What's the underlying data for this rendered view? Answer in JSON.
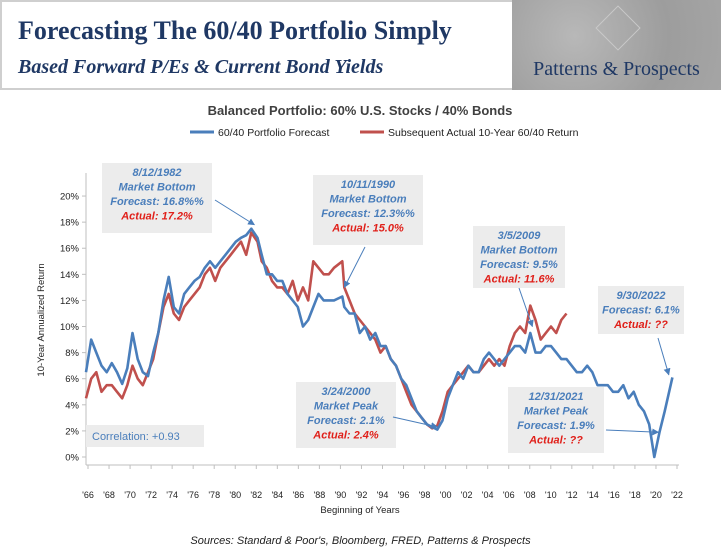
{
  "header": {
    "title": "Forecasting The 60/40 Portfolio Simply",
    "subtitle": "Based Forward P/Es & Current Bond Yields",
    "logo_text": "Patterns & Prospects"
  },
  "sources": "Sources: Standard & Poor's, Bloomberg, FRED, Patterns & Prospects",
  "chart_data": {
    "type": "line",
    "title": "Balanced Portfolio: 60% U.S. Stocks / 40% Bonds",
    "xlabel": "Beginning of Years",
    "ylabel": "10-Year Annualized Return",
    "xlim": [
      1966,
      2023
    ],
    "ylim": [
      0,
      21
    ],
    "yticks": [
      0,
      2,
      4,
      6,
      8,
      10,
      12,
      14,
      16,
      18,
      20
    ],
    "ytick_format": "percent",
    "xticks": [
      "'66",
      "'68",
      "'70",
      "'72",
      "'74",
      "'76",
      "'78",
      "'80",
      "'82",
      "'84",
      "'86",
      "'88",
      "'90",
      "'92",
      "'94",
      "'96",
      "'98",
      "'00",
      "'02",
      "'04",
      "'06",
      "'08",
      "'10",
      "'12",
      "'14",
      "'16",
      "'18",
      "'20",
      "'22"
    ],
    "legend_position": "top",
    "grid": false,
    "series": [
      {
        "name": "60/40 Portfolio Forecast",
        "color": "#4a7ebb",
        "x": [
          1966,
          1966.5,
          1967,
          1967.5,
          1968,
          1968.5,
          1969,
          1969.5,
          1970,
          1970.5,
          1971,
          1971.5,
          1972,
          1972.5,
          1973,
          1973.5,
          1974,
          1974.5,
          1975,
          1975.5,
          1976,
          1976.5,
          1977,
          1977.5,
          1978,
          1978.5,
          1979,
          1979.5,
          1980,
          1980.5,
          1981,
          1981.5,
          1982,
          1982.6,
          1983,
          1983.5,
          1984,
          1984.5,
          1985,
          1985.5,
          1986,
          1986.5,
          1987,
          1987.5,
          1988,
          1988.5,
          1989,
          1989.5,
          1990,
          1990.8,
          1991,
          1991.5,
          1992,
          1992.5,
          1993,
          1993.5,
          1994,
          1994.5,
          1995,
          1995.5,
          1996,
          1996.5,
          1997,
          1997.5,
          1998,
          1998.5,
          1999,
          1999.5,
          2000,
          2000.5,
          2001,
          2001.5,
          2002,
          2002.5,
          2003,
          2003.5,
          2004,
          2004.5,
          2005,
          2005.5,
          2006,
          2006.5,
          2007,
          2007.5,
          2008,
          2008.5,
          2009,
          2009.5,
          2010,
          2010.5,
          2011,
          2011.5,
          2012,
          2012.5,
          2013,
          2013.5,
          2014,
          2014.5,
          2015,
          2015.5,
          2016,
          2016.5,
          2017,
          2017.5,
          2018,
          2018.5,
          2019,
          2019.5,
          2020,
          2020.5,
          2021,
          2021.5,
          2022,
          2022.75
        ],
        "values": [
          6.5,
          9.0,
          8.0,
          7.0,
          6.5,
          7.2,
          6.5,
          5.6,
          6.8,
          9.5,
          7.5,
          6.5,
          6.2,
          8.0,
          9.5,
          12.0,
          13.8,
          11.5,
          11.0,
          12.5,
          13.0,
          13.5,
          13.8,
          14.5,
          15.0,
          14.5,
          15.0,
          15.5,
          16.0,
          16.5,
          16.8,
          17.0,
          17.5,
          16.8,
          15.5,
          14.0,
          14.0,
          13.5,
          13.5,
          12.5,
          12.0,
          11.5,
          10.0,
          10.5,
          11.5,
          12.5,
          12.0,
          12.0,
          12.0,
          12.3,
          11.5,
          11.0,
          11.0,
          9.5,
          10.0,
          9.0,
          9.5,
          8.5,
          8.5,
          7.5,
          7.0,
          6.0,
          5.5,
          4.5,
          3.5,
          3.0,
          2.5,
          2.3,
          2.1,
          2.8,
          4.5,
          5.5,
          6.5,
          6.0,
          7.0,
          6.5,
          6.5,
          7.5,
          8.0,
          7.5,
          7.0,
          7.5,
          8.0,
          8.5,
          8.5,
          8.0,
          9.5,
          8.0,
          8.0,
          8.5,
          8.5,
          8.0,
          7.5,
          7.5,
          7.0,
          6.5,
          6.5,
          7.0,
          6.5,
          5.5,
          5.5,
          5.5,
          5.0,
          5.0,
          5.5,
          4.5,
          5.0,
          4.0,
          3.5,
          2.5,
          0.0,
          1.9,
          3.5,
          6.1
        ]
      },
      {
        "name": "Subsequent Actual 10-Year 60/40 Return",
        "color": "#c0504d",
        "x": [
          1966,
          1966.5,
          1967,
          1967.5,
          1968,
          1968.5,
          1969,
          1969.5,
          1970,
          1970.5,
          1971,
          1971.5,
          1972,
          1972.5,
          1973,
          1973.5,
          1974,
          1974.5,
          1975,
          1975.5,
          1976,
          1976.5,
          1977,
          1977.5,
          1978,
          1978.5,
          1979,
          1979.5,
          1980,
          1980.5,
          1981,
          1981.5,
          1982,
          1982.6,
          1983,
          1983.5,
          1984,
          1984.5,
          1985,
          1985.5,
          1986,
          1986.5,
          1987,
          1987.5,
          1988,
          1988.5,
          1989,
          1989.5,
          1990,
          1990.8,
          1991,
          1991.5,
          1992,
          1992.5,
          1993,
          1993.5,
          1994,
          1994.5,
          1995,
          1995.5,
          1996,
          1996.5,
          1997,
          1997.5,
          1998,
          1998.5,
          1999,
          1999.5,
          2000,
          2000.5,
          2001,
          2001.5,
          2002,
          2002.5,
          2003,
          2003.5,
          2004,
          2004.5,
          2005,
          2005.5,
          2006,
          2006.5,
          2007,
          2007.5,
          2008,
          2008.5,
          2009,
          2009.5,
          2010,
          2010.5,
          2011,
          2011.5,
          2012,
          2012.5
        ],
        "values": [
          4.5,
          6.0,
          6.5,
          5.0,
          5.5,
          5.5,
          5.0,
          4.5,
          5.5,
          7.0,
          6.0,
          5.5,
          6.5,
          7.5,
          9.5,
          11.5,
          12.5,
          11.0,
          10.5,
          11.5,
          12.0,
          12.5,
          13.0,
          14.0,
          14.5,
          13.5,
          14.5,
          15.0,
          15.5,
          16.0,
          16.5,
          15.5,
          17.2,
          16.5,
          15.0,
          14.5,
          13.5,
          13.0,
          13.0,
          12.5,
          13.5,
          12.0,
          13.0,
          12.0,
          15.0,
          14.5,
          14.0,
          14.0,
          14.5,
          15.0,
          13.0,
          12.0,
          11.0,
          10.5,
          10.0,
          9.5,
          9.0,
          8.0,
          8.5,
          7.5,
          7.0,
          6.0,
          5.0,
          4.0,
          3.5,
          3.0,
          2.5,
          2.2,
          2.4,
          3.5,
          5.0,
          5.5,
          6.0,
          6.5,
          7.0,
          6.5,
          6.5,
          7.0,
          7.5,
          7.0,
          7.5,
          7.0,
          8.5,
          9.5,
          10.0,
          9.5,
          11.6,
          10.5,
          9.0,
          9.5,
          10.0,
          9.5,
          10.5,
          11.0
        ]
      }
    ],
    "annotations": [
      {
        "lines": [
          "8/12/1982",
          "Market Bottom",
          "Forecast: 16.8%%"
        ],
        "actual": "Actual: 17.2%",
        "arrow_to": [
          1982.3,
          17.8
        ]
      },
      {
        "lines": [
          "10/11/1990",
          "Market Bottom",
          "Forecast: 12.3%%"
        ],
        "actual": "Actual: 15.0%",
        "arrow_to": [
          1991.0,
          13.0
        ]
      },
      {
        "lines": [
          "3/5/2009",
          "Market Bottom",
          "Forecast: 9.5%"
        ],
        "actual": "Actual: 11.6%",
        "arrow_to": [
          2009.2,
          10.0
        ]
      },
      {
        "lines": [
          "9/30/2022",
          "Forecast: 6.1%"
        ],
        "actual": "Actual: ??",
        "arrow_to": [
          2022.4,
          6.3
        ]
      },
      {
        "lines": [
          "3/24/2000",
          "Market Peak",
          "Forecast: 2.1%"
        ],
        "actual": "Actual: 2.4%",
        "arrow_to": [
          2000.0,
          2.3
        ]
      },
      {
        "lines": [
          "12/31/2021",
          "Market Peak",
          "Forecast: 1.9%"
        ],
        "actual": "Actual: ??",
        "arrow_to": [
          2021.4,
          1.9
        ]
      },
      {
        "lines": [
          "Correlation: +0.93"
        ],
        "actual": ""
      }
    ]
  }
}
